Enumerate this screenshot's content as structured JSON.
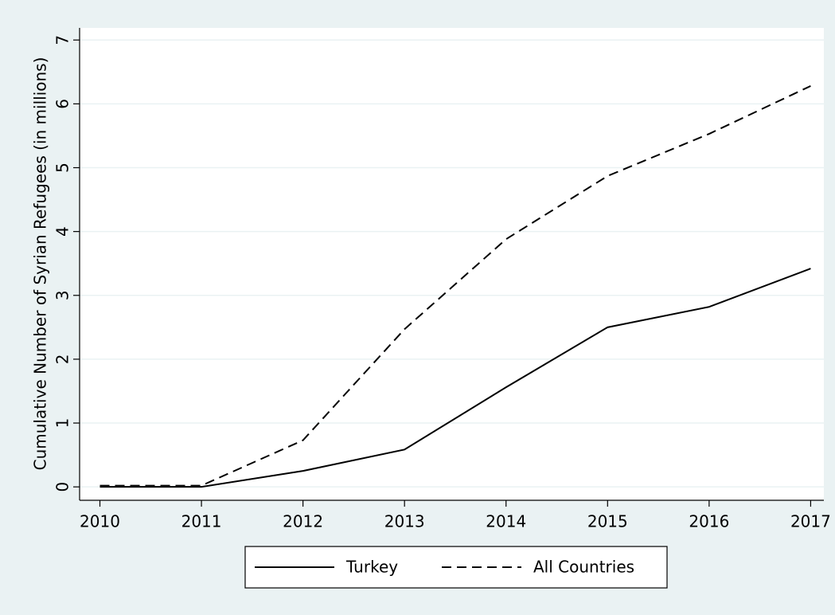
{
  "chart_data": {
    "type": "line",
    "y_label": "Cumulative Number of Syrian Refugees (in millions)",
    "x": [
      2010,
      2011,
      2012,
      2013,
      2014,
      2015,
      2016,
      2017
    ],
    "series": [
      {
        "name": "Turkey",
        "color": "#000000",
        "style": "solid",
        "values": [
          0.0,
          0.0,
          0.25,
          0.585,
          1.56,
          2.5,
          2.82,
          3.42
        ]
      },
      {
        "name": "All Countries",
        "color": "#000000",
        "style": "dashed",
        "values": [
          0.02,
          0.02,
          0.73,
          2.47,
          3.88,
          4.87,
          5.53,
          6.28
        ]
      }
    ],
    "xlim": [
      2009.8,
      2017.13
    ],
    "xticks": [
      2010,
      2011,
      2012,
      2013,
      2014,
      2015,
      2016,
      2017
    ],
    "ylim": [
      -0.21,
      7.19
    ],
    "yticks": [
      0,
      1,
      2,
      3,
      4,
      5,
      6,
      7
    ],
    "grid": true,
    "legend": "bottom"
  }
}
